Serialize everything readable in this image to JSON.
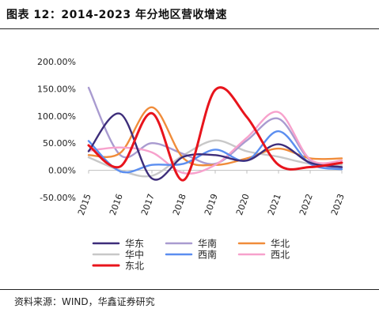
{
  "figure": {
    "title": "图表 12：2014-2023 年分地区营收增速",
    "source": "资料来源：WIND，华鑫证券研究"
  },
  "chart_data": {
    "type": "line",
    "smooth": true,
    "x": [
      "2015",
      "2016",
      "2017",
      "2018",
      "2019",
      "2020",
      "2021",
      "2022",
      "2023"
    ],
    "y_tick_labels": [
      "200.00%",
      "150.00%",
      "100.00%",
      "50.00%",
      "0.00%",
      "-50.00%"
    ],
    "y_ticks": [
      200,
      150,
      100,
      50,
      0,
      -50
    ],
    "ylim": [
      -50,
      200
    ],
    "y_unit": "%",
    "grid": false,
    "legend_position": "bottom",
    "series": [
      {
        "name": "华东",
        "color": "#3d2d7a",
        "values": [
          35,
          104,
          -15,
          25,
          28,
          18,
          48,
          14,
          6
        ]
      },
      {
        "name": "华南",
        "color": "#a99bd0",
        "values": [
          152,
          28,
          50,
          30,
          12,
          55,
          95,
          18,
          5
        ]
      },
      {
        "name": "华北",
        "color": "#f08c3a",
        "values": [
          28,
          32,
          116,
          22,
          10,
          22,
          40,
          22,
          22
        ]
      },
      {
        "name": "华中",
        "color": "#c8c8c8",
        "values": [
          24,
          0,
          -10,
          28,
          55,
          35,
          25,
          12,
          10
        ]
      },
      {
        "name": "西南",
        "color": "#5b8ef0",
        "values": [
          54,
          -2,
          10,
          12,
          38,
          18,
          72,
          12,
          2
        ]
      },
      {
        "name": "西北",
        "color": "#f7a1cc",
        "values": [
          36,
          42,
          33,
          -5,
          10,
          60,
          107,
          20,
          18
        ]
      },
      {
        "name": "东北",
        "color": "#e8141c",
        "values": [
          46,
          7,
          105,
          -18,
          148,
          98,
          10,
          6,
          14
        ]
      }
    ]
  }
}
